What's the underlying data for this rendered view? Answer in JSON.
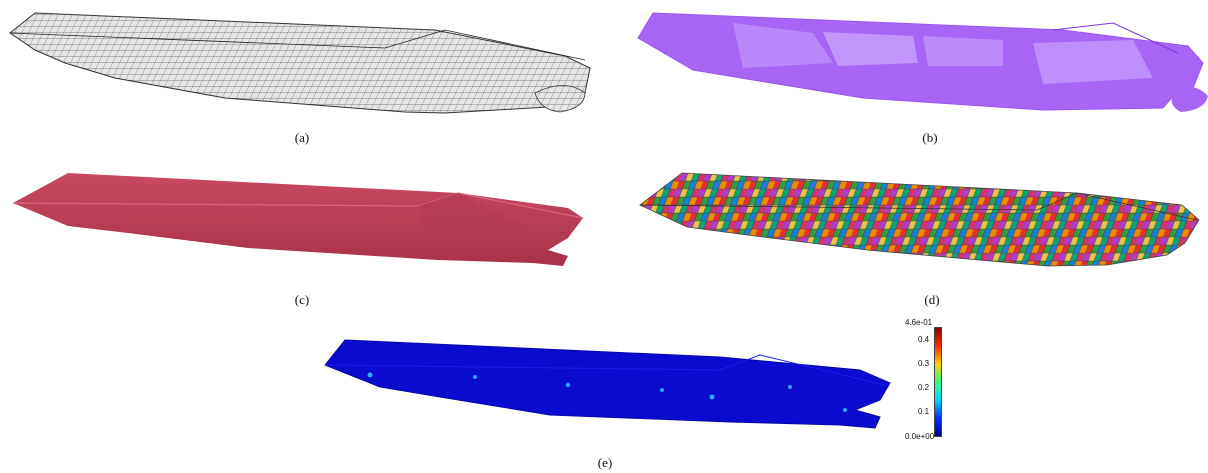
{
  "figure": {
    "panels": [
      {
        "id": "a",
        "caption": "(a)",
        "rendering": "wireframe-quad-mesh",
        "color": "#404040"
      },
      {
        "id": "b",
        "caption": "(b)",
        "rendering": "translucent-dense-mesh",
        "color": "#b266ff"
      },
      {
        "id": "c",
        "caption": "(c)",
        "rendering": "smooth-shaded-surface",
        "color": "#c0405a"
      },
      {
        "id": "d",
        "caption": "(d)",
        "rendering": "multicolor-patch-partition",
        "color": "#888888"
      },
      {
        "id": "e",
        "caption": "(e)",
        "rendering": "error-colormap-surface",
        "color": "#0a0ad0"
      }
    ],
    "colorbar": {
      "max_label": "4.6e-01",
      "min_label": "0.0e+00",
      "ticks": [
        "0.4",
        "0.3",
        "0.2",
        "0.1"
      ],
      "colors": [
        "#8b0000",
        "#ff2a00",
        "#ffd000",
        "#30ff80",
        "#00d8ff",
        "#0030ff",
        "#00008b"
      ]
    }
  }
}
